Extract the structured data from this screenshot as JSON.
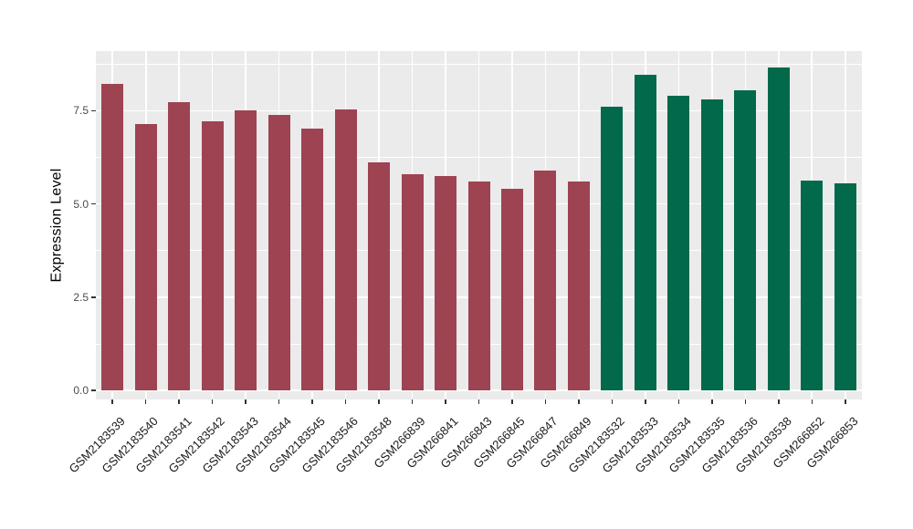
{
  "figure": {
    "background": "#FFFFFF"
  },
  "chart_data": {
    "type": "bar",
    "title": "",
    "xlabel": "",
    "ylabel": "Expression Level",
    "legend": "none",
    "grid": true,
    "categories": [
      "GSM2183539",
      "GSM2183540",
      "GSM2183541",
      "GSM2183542",
      "GSM2183543",
      "GSM2183544",
      "GSM2183545",
      "GSM2183546",
      "GSM2183548",
      "GSM266839",
      "GSM266841",
      "GSM266843",
      "GSM266845",
      "GSM266847",
      "GSM266849",
      "GSM2183532",
      "GSM2183533",
      "GSM2183534",
      "GSM2183535",
      "GSM2183536",
      "GSM2183538",
      "GSM266852",
      "GSM266853"
    ],
    "values": [
      8.22,
      7.15,
      7.72,
      7.22,
      7.5,
      7.38,
      7.03,
      7.53,
      6.12,
      5.81,
      5.76,
      5.6,
      5.41,
      5.9,
      5.61,
      7.62,
      8.47,
      7.91,
      7.8,
      8.05,
      8.66,
      5.64,
      5.56
    ],
    "bar_colors": [
      "#9E4352",
      "#9E4352",
      "#9E4352",
      "#9E4352",
      "#9E4352",
      "#9E4352",
      "#9E4352",
      "#9E4352",
      "#9E4352",
      "#9E4352",
      "#9E4352",
      "#9E4352",
      "#9E4352",
      "#9E4352",
      "#9E4352",
      "#02694A",
      "#02694A",
      "#02694A",
      "#02694A",
      "#02694A",
      "#02694A",
      "#02694A",
      "#02694A"
    ],
    "y_axis": {
      "tick_labels": [
        "0.0",
        "2.5",
        "5.0",
        "7.5"
      ],
      "tick_values": [
        0,
        2.5,
        5.0,
        7.5
      ],
      "minor_tick_values": [
        1.25,
        3.75,
        6.25,
        8.75
      ],
      "domain": [
        -0.24,
        9.1
      ]
    },
    "x_tick_label_angle_deg": -45,
    "style": {
      "panel_background": "#EBEBEB",
      "grid_color": "#FFFFFF",
      "axis_tick_color": "#333333",
      "y_tick_label_color": "#4D4D4D",
      "x_tick_label_color": "#1A1A1A",
      "axis_title_color": "#000000"
    }
  }
}
